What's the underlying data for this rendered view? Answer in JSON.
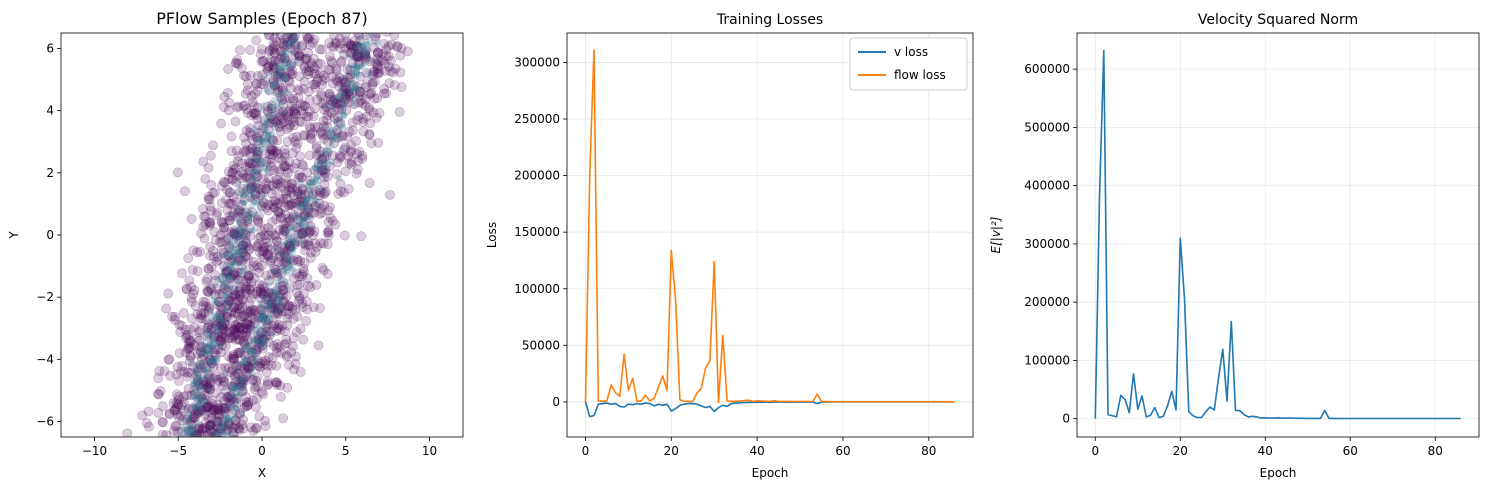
{
  "chart_data": [
    {
      "type": "scatter",
      "title": "PFlow Samples (Epoch 87)",
      "xlabel": "X",
      "ylabel": "Y",
      "xlim": [
        -12,
        12
      ],
      "ylim": [
        -6.5,
        6.5
      ],
      "xticks": [
        -10,
        -5,
        0,
        5,
        10
      ],
      "xtick_labels": [
        "−10",
        "−5",
        "0",
        "5",
        "10"
      ],
      "yticks": [
        -6,
        -4,
        -2,
        0,
        2,
        4,
        6
      ],
      "ytick_labels": [
        "−6",
        "−4",
        "−2",
        "0",
        "2",
        "4",
        "6"
      ],
      "grid": false,
      "point_color": "#440154",
      "dense_color": "#2a788e",
      "description_series": [
        {
          "band": "left",
          "x_at_y_min": -4.5,
          "x_at_y_max": 1.8,
          "points": [
            [
              -5.2,
              -6.2
            ],
            [
              -4.6,
              -5.0
            ],
            [
              -4.0,
              -3.8
            ],
            [
              -3.5,
              -2.5
            ],
            [
              -3.0,
              -1.5
            ],
            [
              -2.5,
              -0.5
            ],
            [
              -2.0,
              0.5
            ],
            [
              -1.5,
              1.5
            ],
            [
              -1.0,
              2.5
            ],
            [
              -0.5,
              3.5
            ],
            [
              0.2,
              4.5
            ],
            [
              0.8,
              5.5
            ],
            [
              1.5,
              6.2
            ]
          ]
        },
        {
          "band": "right",
          "x_at_y_min": -2.5,
          "x_at_y_max": 6.5,
          "points": [
            [
              -2.8,
              -6.0
            ],
            [
              -2.0,
              -4.5
            ],
            [
              -1.0,
              -3.2
            ],
            [
              0.0,
              -2.2
            ],
            [
              1.0,
              -1.2
            ],
            [
              1.8,
              0.0
            ],
            [
              2.5,
              1.0
            ],
            [
              3.2,
              2.0
            ],
            [
              3.8,
              3.0
            ],
            [
              4.5,
              4.0
            ],
            [
              5.2,
              5.0
            ],
            [
              5.8,
              6.0
            ]
          ]
        }
      ]
    },
    {
      "type": "line",
      "title": "Training Losses",
      "xlabel": "Epoch",
      "ylabel": "Loss",
      "xlim": [
        -4.3,
        90.3
      ],
      "ylim": [
        -31000,
        326000
      ],
      "xticks": [
        0,
        20,
        40,
        60,
        80
      ],
      "xtick_labels": [
        "0",
        "20",
        "40",
        "60",
        "80"
      ],
      "yticks": [
        0,
        50000,
        100000,
        150000,
        200000,
        250000,
        300000
      ],
      "ytick_labels": [
        "0",
        "50000",
        "100000",
        "150000",
        "200000",
        "250000",
        "300000"
      ],
      "grid": true,
      "legend_position": "top-right",
      "series": [
        {
          "name": "v loss",
          "color": "#1f77b4",
          "x": [
            0,
            1,
            2,
            3,
            4,
            5,
            6,
            7,
            8,
            9,
            10,
            11,
            12,
            13,
            14,
            15,
            16,
            17,
            18,
            19,
            20,
            21,
            22,
            23,
            24,
            25,
            26,
            27,
            28,
            29,
            30,
            31,
            32,
            33,
            34,
            35,
            36,
            37,
            38,
            39,
            40,
            41,
            42,
            43,
            44,
            45,
            46,
            47,
            48,
            49,
            50,
            51,
            52,
            53,
            54,
            55,
            56,
            57,
            58,
            59,
            60,
            61,
            62,
            63,
            64,
            65,
            66,
            67,
            68,
            69,
            70,
            71,
            72,
            73,
            74,
            75,
            76,
            77,
            78,
            79,
            80,
            81,
            82,
            83,
            84,
            85,
            86
          ],
          "values": [
            0,
            -13000,
            -12000,
            -2000,
            -1500,
            -1000,
            -2000,
            -1500,
            -4000,
            -4500,
            -2000,
            -2500,
            -1500,
            -2000,
            -1000,
            -1500,
            -3500,
            -2000,
            -3000,
            -2000,
            -8000,
            -6000,
            -3000,
            -2000,
            -1500,
            -1500,
            -2000,
            -3500,
            -5000,
            -4000,
            -8500,
            -5000,
            -3000,
            -4000,
            -1500,
            -1000,
            -800,
            -500,
            -400,
            -300,
            -300,
            -300,
            -200,
            -300,
            -200,
            -200,
            -200,
            -200,
            -200,
            -150,
            -150,
            -150,
            -150,
            -150,
            -1500,
            -200,
            -150,
            -100,
            -100,
            -100,
            -100,
            -100,
            -100,
            -100,
            -100,
            -100,
            -100,
            -100,
            -100,
            -100,
            -100,
            -100,
            -100,
            -100,
            -100,
            -100,
            -100,
            -100,
            -100,
            -100,
            -100,
            -100,
            -100,
            -100,
            -100,
            -100,
            -100
          ]
        },
        {
          "name": "flow loss",
          "color": "#ff7f0e",
          "x": [
            0,
            1,
            2,
            3,
            4,
            5,
            6,
            7,
            8,
            9,
            10,
            11,
            12,
            13,
            14,
            15,
            16,
            17,
            18,
            19,
            20,
            21,
            22,
            23,
            24,
            25,
            26,
            27,
            28,
            29,
            30,
            31,
            32,
            33,
            34,
            35,
            36,
            37,
            38,
            39,
            40,
            41,
            42,
            43,
            44,
            45,
            46,
            47,
            48,
            49,
            50,
            51,
            52,
            53,
            54,
            55,
            56,
            57,
            58,
            59,
            60,
            61,
            62,
            63,
            64,
            65,
            66,
            67,
            68,
            69,
            70,
            71,
            72,
            73,
            74,
            75,
            76,
            77,
            78,
            79,
            80,
            81,
            82,
            83,
            84,
            85,
            86
          ],
          "values": [
            0,
            200000,
            311000,
            1000,
            500,
            1000,
            15000,
            8000,
            5000,
            42000,
            10000,
            21000,
            500,
            1000,
            6000,
            1000,
            3000,
            13000,
            23000,
            10000,
            134000,
            90000,
            2000,
            500,
            500,
            500,
            8000,
            12000,
            30000,
            36000,
            124000,
            -500,
            59000,
            1000,
            500,
            500,
            800,
            1200,
            1500,
            500,
            1000,
            800,
            600,
            500,
            1000,
            500,
            500,
            500,
            400,
            400,
            400,
            400,
            400,
            400,
            7000,
            400,
            300,
            200,
            200,
            200,
            200,
            200,
            200,
            200,
            200,
            200,
            200,
            200,
            200,
            200,
            200,
            200,
            200,
            200,
            200,
            200,
            200,
            200,
            200,
            200,
            200,
            200,
            200,
            200,
            200,
            200,
            200
          ]
        }
      ]
    },
    {
      "type": "line",
      "title": "Velocity Squared Norm",
      "xlabel": "Epoch",
      "ylabel": "E[|v|²]",
      "xlim": [
        -4.3,
        90.3
      ],
      "ylim": [
        -31500,
        662000
      ],
      "xticks": [
        0,
        20,
        40,
        60,
        80
      ],
      "xtick_labels": [
        "0",
        "20",
        "40",
        "60",
        "80"
      ],
      "yticks": [
        0,
        100000,
        200000,
        300000,
        400000,
        500000,
        600000
      ],
      "ytick_labels": [
        "0",
        "100000",
        "200000",
        "300000",
        "400000",
        "500000",
        "600000"
      ],
      "grid": true,
      "series": [
        {
          "color": "#1f77b4",
          "x": [
            0,
            1,
            2,
            3,
            4,
            5,
            6,
            7,
            8,
            9,
            10,
            11,
            12,
            13,
            14,
            15,
            16,
            17,
            18,
            19,
            20,
            21,
            22,
            23,
            24,
            25,
            26,
            27,
            28,
            29,
            30,
            31,
            32,
            33,
            34,
            35,
            36,
            37,
            38,
            39,
            40,
            41,
            42,
            43,
            44,
            45,
            46,
            47,
            48,
            49,
            50,
            51,
            52,
            53,
            54,
            55,
            56,
            57,
            58,
            59,
            60,
            61,
            62,
            63,
            64,
            65,
            66,
            67,
            68,
            69,
            70,
            71,
            72,
            73,
            74,
            75,
            76,
            77,
            78,
            79,
            80,
            81,
            82,
            83,
            84,
            85,
            86
          ],
          "values": [
            0,
            380000,
            632000,
            7000,
            5000,
            3000,
            40000,
            33000,
            10000,
            77000,
            16000,
            39000,
            3000,
            6000,
            19000,
            2000,
            4000,
            22000,
            47000,
            15000,
            310000,
            205000,
            12000,
            5000,
            2000,
            2000,
            12000,
            20000,
            15000,
            70000,
            119000,
            30000,
            167000,
            14000,
            14000,
            7000,
            3000,
            4000,
            3000,
            1000,
            1500,
            1200,
            1000,
            1500,
            800,
            1000,
            1200,
            800,
            600,
            600,
            500,
            500,
            500,
            500,
            14000,
            500,
            400,
            300,
            300,
            300,
            300,
            300,
            300,
            300,
            300,
            300,
            300,
            300,
            300,
            300,
            300,
            300,
            300,
            300,
            300,
            300,
            300,
            300,
            300,
            300,
            300,
            300,
            300,
            300,
            300,
            300,
            300
          ]
        }
      ]
    }
  ]
}
